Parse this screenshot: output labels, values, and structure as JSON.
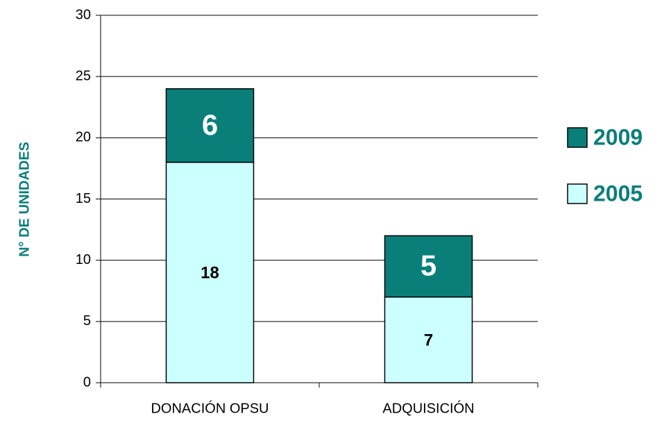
{
  "chart_data": {
    "type": "stacked_bar",
    "ylabel": "N° DE UNIDADES",
    "categories": [
      "DONACIÓN OPSU",
      "ADQUISICIÓN"
    ],
    "series": [
      {
        "name": "2005",
        "color": "#ccffff",
        "label_color": "#000000",
        "values": [
          18,
          7
        ]
      },
      {
        "name": "2009",
        "color": "#0a7f7a",
        "label_color": "#ffffff",
        "values": [
          6,
          5
        ]
      }
    ],
    "ylim": [
      0,
      30
    ],
    "yticks": [
      0,
      5,
      10,
      15,
      20,
      25,
      30
    ],
    "grid": true,
    "legend": "right"
  }
}
